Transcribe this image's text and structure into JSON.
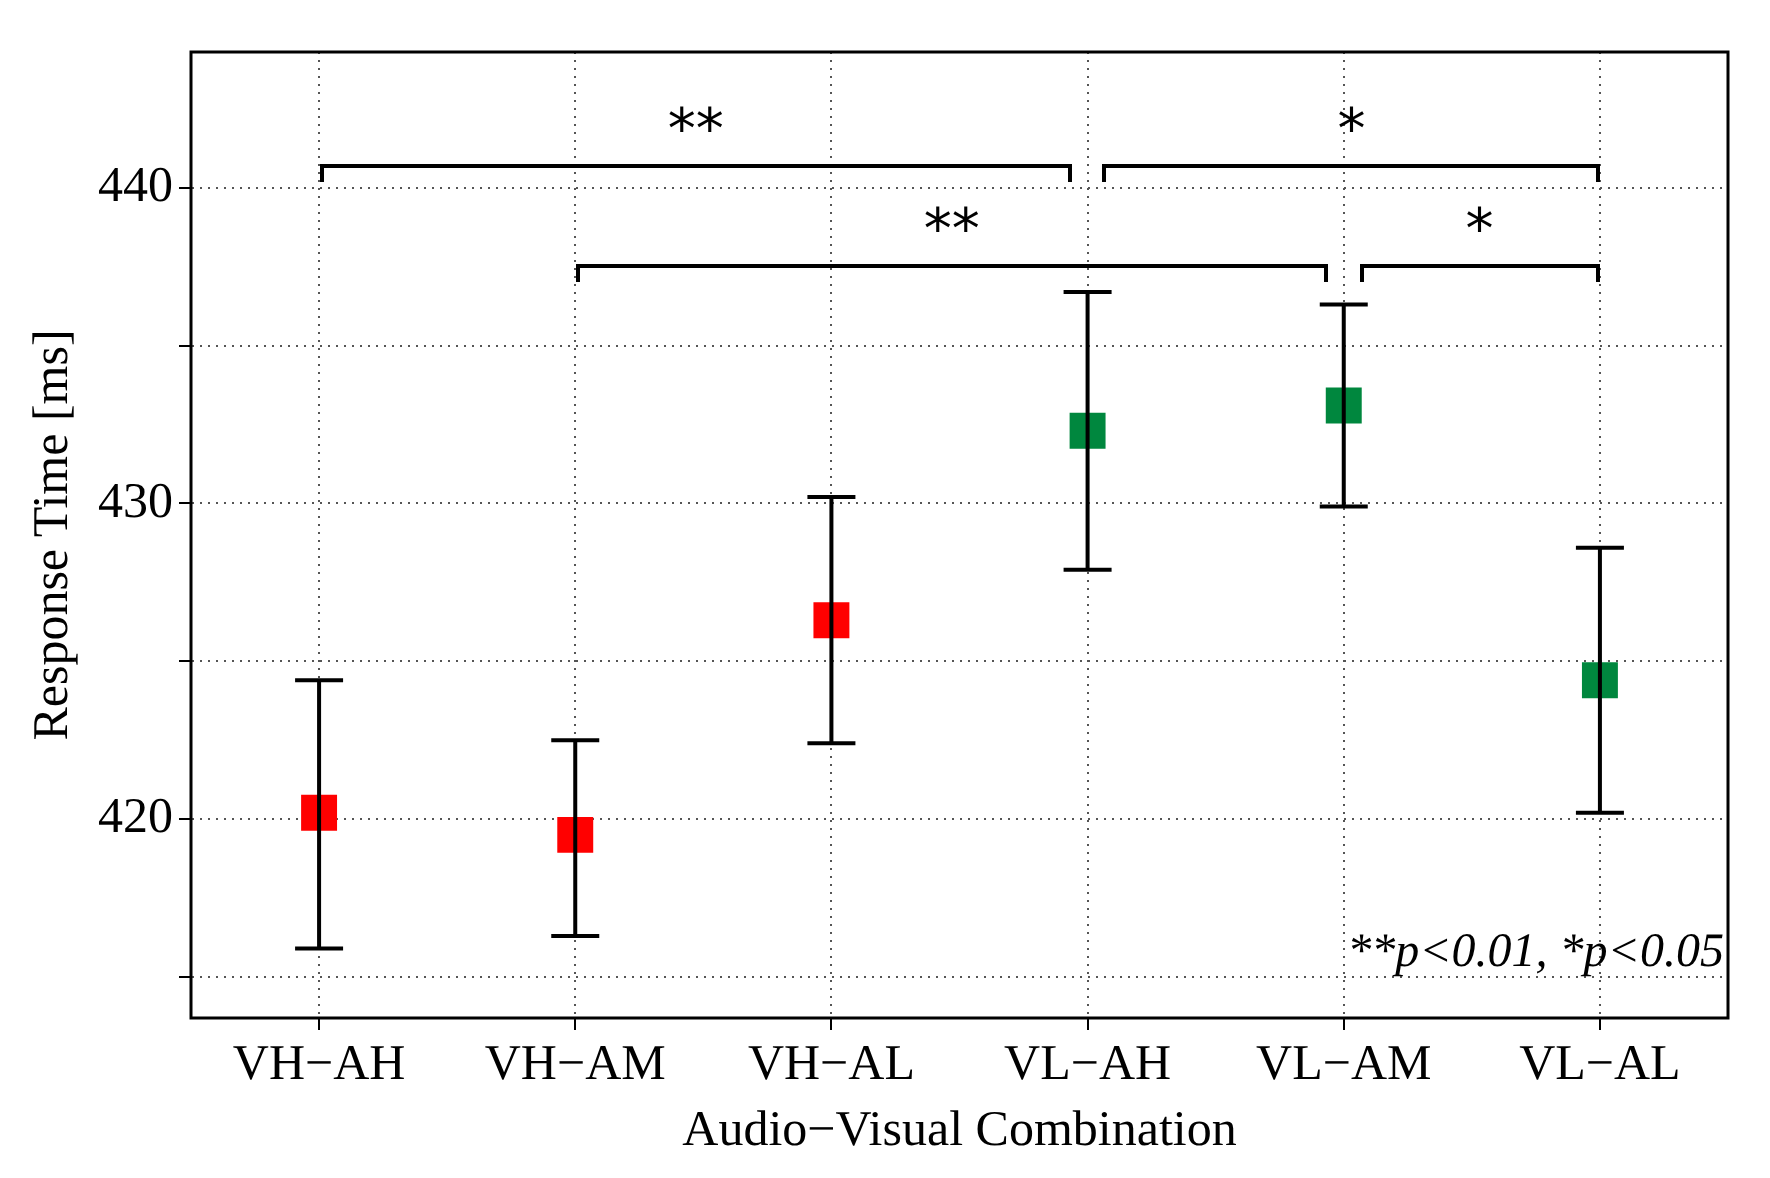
{
  "chart_data": {
    "type": "scatter",
    "xlabel": "Audio−Visual Combination",
    "ylabel": "Response Time [ms]",
    "categories": [
      "VH−AH",
      "VH−AM",
      "VH−AL",
      "VL−AH",
      "VL−AM",
      "VL−AL"
    ],
    "values": [
      420.2,
      419.5,
      426.3,
      432.3,
      433.1,
      424.4
    ],
    "errors": [
      [
        415.9,
        424.4
      ],
      [
        416.3,
        422.5
      ],
      [
        422.4,
        430.2
      ],
      [
        427.9,
        436.7
      ],
      [
        429.9,
        436.3
      ],
      [
        420.2,
        428.6
      ]
    ],
    "colors": [
      "#ff0000",
      "#ff0000",
      "#ff0000",
      "#00873e",
      "#00873e",
      "#00873e"
    ],
    "ylim": [
      413.7,
      444.3
    ],
    "yticks": [
      {
        "value": 415,
        "label": null
      },
      420,
      {
        "value": 425,
        "label": null
      },
      430,
      {
        "value": 435,
        "label": null
      },
      440
    ],
    "grid": true,
    "marker": "square",
    "legend": false,
    "annotations": [
      "**",
      "*",
      "**",
      "*",
      "**p<0.01, *p<0.05"
    ]
  }
}
